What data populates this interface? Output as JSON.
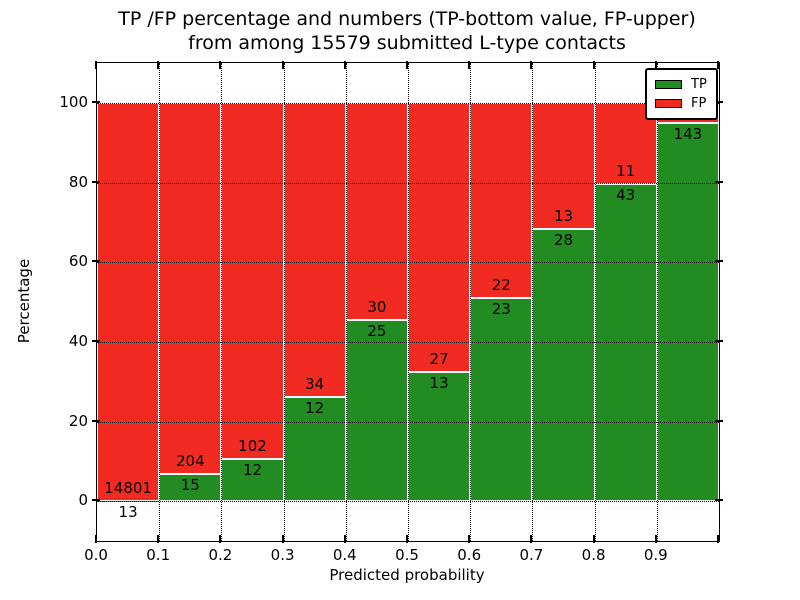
{
  "figure": {
    "title_line1": "TP /FP percentage and numbers (TP-bottom value, FP-upper)",
    "title_line2": "from among 15579 submitted L-type contacts",
    "xlabel": "Predicted probability",
    "ylabel": "Percentage"
  },
  "legend": {
    "items": [
      {
        "label": "TP",
        "color": "#228b22"
      },
      {
        "label": "FP",
        "color": "#f22b22"
      }
    ]
  },
  "chart_data": {
    "type": "bar",
    "stacked": true,
    "title": "TP /FP percentage and numbers (TP-bottom value, FP-upper) from among 15579 submitted L-type contacts",
    "total_submitted": 15579,
    "xlabel": "Predicted probability",
    "ylabel": "Percentage",
    "xlim": [
      0.0,
      1.0
    ],
    "ylim": [
      -10,
      110
    ],
    "grid": "dotted black, on",
    "legend_position": "upper right",
    "bin_edges": [
      0.0,
      0.1,
      0.2,
      0.3,
      0.4,
      0.5,
      0.6,
      0.7,
      0.8,
      0.9,
      1.0
    ],
    "x_tick_labels": [
      "0.0",
      "0.1",
      "0.2",
      "0.3",
      "0.4",
      "0.5",
      "0.6",
      "0.7",
      "0.8",
      "0.9"
    ],
    "y_ticks": [
      0,
      20,
      40,
      60,
      80,
      100
    ],
    "y_tick_labels": [
      "0",
      "20",
      "40",
      "60",
      "80",
      "100"
    ],
    "series": [
      {
        "name": "TP",
        "color": "#228b22",
        "counts": [
          13,
          15,
          12,
          12,
          25,
          13,
          23,
          28,
          43,
          143
        ]
      },
      {
        "name": "FP",
        "color": "#f22b22",
        "counts": [
          14801,
          204,
          102,
          34,
          30,
          27,
          22,
          13,
          11,
          null
        ]
      }
    ],
    "tp_percent": [
      0.09,
      6.85,
      10.53,
      26.09,
      45.45,
      32.5,
      51.11,
      68.29,
      79.63,
      95.0
    ],
    "bar_labels": {
      "fp": [
        "14801",
        "204",
        "102",
        "34",
        "30",
        "27",
        "22",
        "13",
        "11",
        ""
      ],
      "tp": [
        "13",
        "15",
        "12",
        "12",
        "25",
        "13",
        "23",
        "28",
        "43",
        "143"
      ]
    }
  }
}
